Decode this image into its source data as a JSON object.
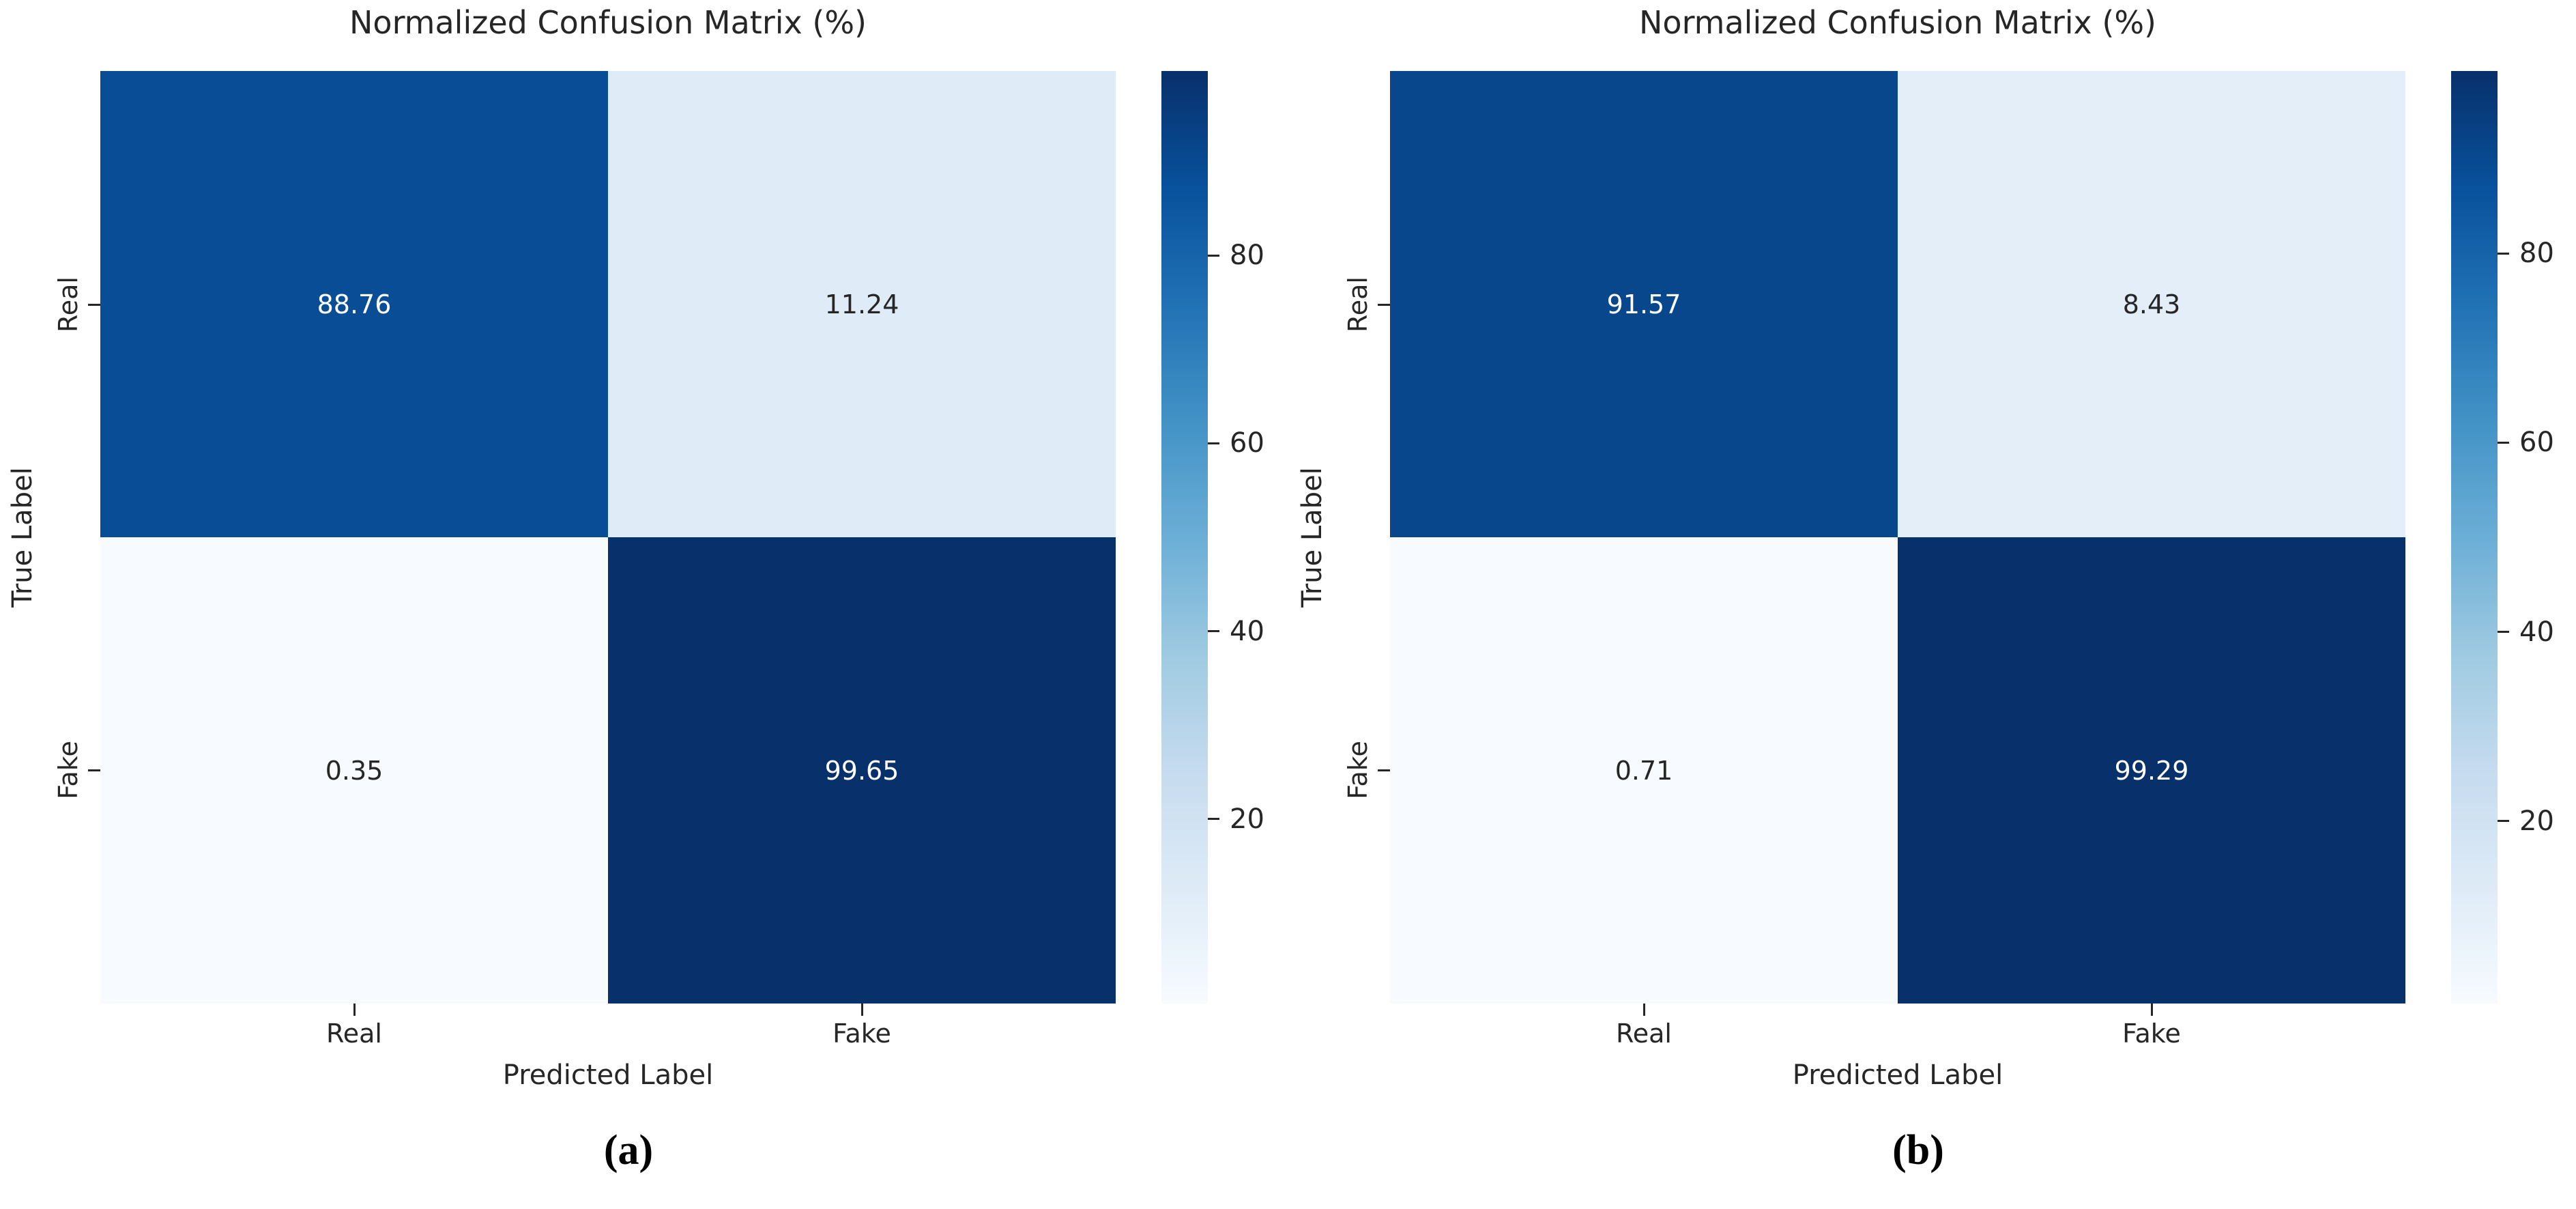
{
  "figure": {
    "background": "#ffffff",
    "text_color": "#262626"
  },
  "colormap": {
    "name": "Blues",
    "stops": [
      "#f7fbff",
      "#deebf7",
      "#c6dbef",
      "#9ecae1",
      "#6baed6",
      "#4292c6",
      "#2171b5",
      "#08519c",
      "#08306b"
    ]
  },
  "panels": [
    {
      "caption": "(a)",
      "title": "Normalized Confusion Matrix (%)",
      "xlabel": "Predicted Label",
      "ylabel": "True Label",
      "x_ticks": {
        "col0": "Real",
        "col1": "Fake"
      },
      "y_ticks": {
        "row0": "Real",
        "row1": "Fake"
      },
      "cells_display": [
        [
          "88.76",
          "11.24"
        ],
        [
          "0.35",
          "99.65"
        ]
      ],
      "cell_colors": [
        [
          "#084d96",
          "#dfebf7"
        ],
        [
          "#f7fbff",
          "#08306b"
        ]
      ],
      "cell_text_colors": [
        [
          "#ffffff",
          "#262626"
        ],
        [
          "#262626",
          "#ffffff"
        ]
      ],
      "vmin": 0.35,
      "vmax": 99.65,
      "colorbar_ticks": [
        80,
        60,
        40,
        20
      ]
    },
    {
      "caption": "(b)",
      "title": "Normalized Confusion Matrix (%)",
      "xlabel": "Predicted Label",
      "ylabel": "True Label",
      "x_ticks": {
        "col0": "Real",
        "col1": "Fake"
      },
      "y_ticks": {
        "row0": "Real",
        "row1": "Fake"
      },
      "cells_display": [
        [
          "91.57",
          "8.43"
        ],
        [
          "0.71",
          "99.29"
        ]
      ],
      "cell_colors": [
        [
          "#09478c",
          "#e4eef9"
        ],
        [
          "#f7fbff",
          "#08306b"
        ]
      ],
      "cell_text_colors": [
        [
          "#ffffff",
          "#262626"
        ],
        [
          "#262626",
          "#ffffff"
        ]
      ],
      "vmin": 0.71,
      "vmax": 99.29,
      "colorbar_ticks": [
        80,
        60,
        40,
        20
      ]
    }
  ],
  "chart_data": [
    {
      "type": "heatmap",
      "panel": "a",
      "title": "Normalized Confusion Matrix (%)",
      "xlabel": "Predicted Label",
      "ylabel": "True Label",
      "x_categories": [
        "Real",
        "Fake"
      ],
      "y_categories": [
        "Real",
        "Fake"
      ],
      "values": [
        [
          88.76,
          11.24
        ],
        [
          0.35,
          99.65
        ]
      ],
      "unit": "%",
      "colormap": "Blues",
      "colorbar_ticks": [
        20,
        40,
        60,
        80
      ],
      "color_range": [
        0.35,
        99.65
      ],
      "legend_position": "right-colorbar",
      "grid": false
    },
    {
      "type": "heatmap",
      "panel": "b",
      "title": "Normalized Confusion Matrix (%)",
      "xlabel": "Predicted Label",
      "ylabel": "True Label",
      "x_categories": [
        "Real",
        "Fake"
      ],
      "y_categories": [
        "Real",
        "Fake"
      ],
      "values": [
        [
          91.57,
          8.43
        ],
        [
          0.71,
          99.29
        ]
      ],
      "unit": "%",
      "colormap": "Blues",
      "colorbar_ticks": [
        20,
        40,
        60,
        80
      ],
      "color_range": [
        0.71,
        99.29
      ],
      "legend_position": "right-colorbar",
      "grid": false
    }
  ]
}
